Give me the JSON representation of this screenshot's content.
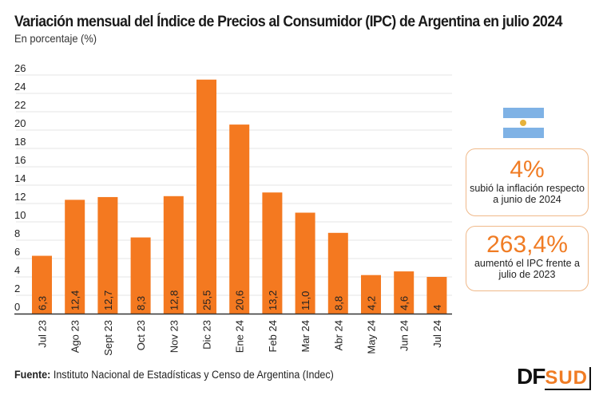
{
  "header": {
    "title": "Variación mensual del Índice de Precios al Consumidor (IPC) de Argentina en julio 2024",
    "subtitle": "En porcentaje (%)"
  },
  "chart_data": {
    "type": "bar",
    "title": "Variación mensual del Índice de Precios al Consumidor (IPC) de Argentina en julio 2024",
    "subtitle": "En porcentaje (%)",
    "xlabel": "",
    "ylabel": "",
    "categories": [
      "Jul 23",
      "Ago 23",
      "Sept 23",
      "Oct 23",
      "Nov 23",
      "Dic 23",
      "Ene 24",
      "Feb 24",
      "Mar 24",
      "Abr 24",
      "May 24",
      "Jun 24",
      "Jul 24"
    ],
    "values": [
      6.3,
      12.4,
      12.7,
      8.3,
      12.8,
      25.5,
      20.6,
      13.2,
      11.0,
      8.8,
      4.2,
      4.6,
      4
    ],
    "data_labels": [
      "6,3",
      "12,4",
      "12,7",
      "8,3",
      "12,8",
      "25,5",
      "20,6",
      "13,2",
      "11,0",
      "8,8",
      "4,2",
      "4,6",
      "4"
    ],
    "yticks": [
      0,
      2,
      4,
      6,
      8,
      10,
      12,
      14,
      16,
      18,
      20,
      22,
      24,
      26
    ],
    "ylim": [
      0,
      26
    ],
    "grid": true,
    "bar_color": "#f47920"
  },
  "flag": {
    "icon": "argentina-flag-icon"
  },
  "cards": [
    {
      "value": "4%",
      "description": "subió la inflación respecto a junio de 2024"
    },
    {
      "value": "263,4%",
      "description": "aumentó el IPC frente a julio de 2023"
    }
  ],
  "footer": {
    "source_label": "Fuente:",
    "source_text": " Instituto Nacional de Estadísticas y Censo de Argentina (Indec)"
  },
  "logo": {
    "part1": "DF",
    "part2": "SUD"
  },
  "colors": {
    "accent": "#f07c24",
    "bar": "#f47920",
    "flag_blue": "#7fb2e5",
    "flag_sun": "#e7b23b"
  }
}
